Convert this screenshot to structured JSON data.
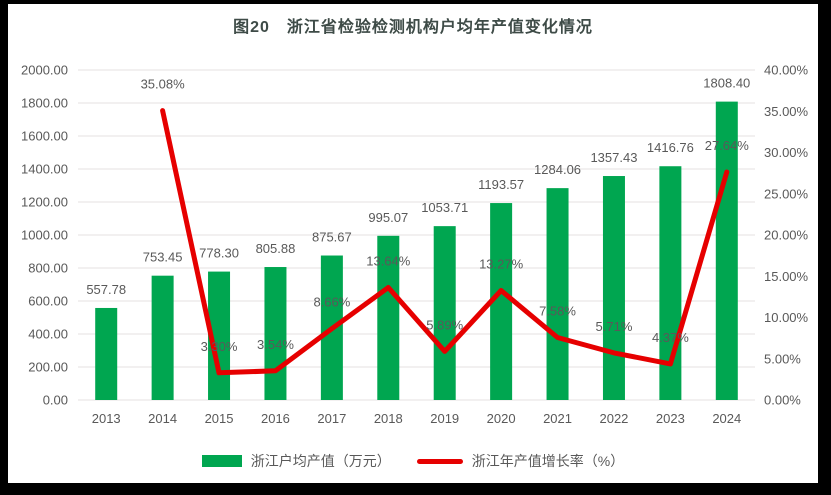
{
  "title": "图20　浙江省检验检测机构户均年产值变化情况",
  "colors": {
    "bar": "#00a650",
    "line": "#e60000",
    "gridline": "#e4e1e1",
    "data_label": "#595959",
    "tick_label": "#595959",
    "title": "#3e4b47",
    "frame": "#000000",
    "background": "#ffffff"
  },
  "chart_data": {
    "type": "bar",
    "subtype": "combo-bar-line",
    "title": "图20　浙江省检验检测机构户均年产值变化情况",
    "categories": [
      "2013",
      "2014",
      "2015",
      "2016",
      "2017",
      "2018",
      "2019",
      "2020",
      "2021",
      "2022",
      "2023",
      "2024"
    ],
    "series": [
      {
        "name": "浙江户均产值（万元）",
        "type": "bar",
        "axis": "left",
        "values": [
          557.78,
          753.45,
          778.3,
          805.88,
          875.67,
          995.07,
          1053.71,
          1193.57,
          1284.06,
          1357.43,
          1416.76,
          1808.4
        ]
      },
      {
        "name": "浙江年产值增长率（%）",
        "type": "line",
        "axis": "right",
        "values": [
          null,
          35.08,
          3.3,
          3.54,
          8.66,
          13.64,
          5.89,
          13.27,
          7.58,
          5.71,
          4.37,
          27.64
        ]
      }
    ],
    "left_axis": {
      "min": 0,
      "max": 2000,
      "step": 200,
      "tick_labels": [
        "0.00",
        "200.00",
        "400.00",
        "600.00",
        "800.00",
        "1000.00",
        "1200.00",
        "1400.00",
        "1600.00",
        "1800.00",
        "2000.00"
      ]
    },
    "right_axis": {
      "min": 0,
      "max": 40,
      "step": 5,
      "tick_labels": [
        "0.00%",
        "5.00%",
        "10.00%",
        "15.00%",
        "20.00%",
        "25.00%",
        "30.00%",
        "35.00%",
        "40.00%"
      ]
    },
    "grid": true,
    "legend_position": "bottom",
    "data_labels": true
  },
  "legend": {
    "bar_label": "浙江户均产值（万元）",
    "line_label": "浙江年产值增长率（%）"
  }
}
